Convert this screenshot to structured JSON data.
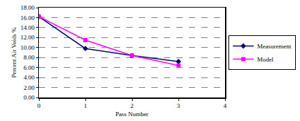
{
  "chart_data": {
    "type": "line",
    "x_label": "Pass Number",
    "y_label": "Percent Air Voids %",
    "x": [
      0,
      1,
      2,
      3
    ],
    "series": [
      {
        "name": "Measurement",
        "color": "#000080",
        "marker": "diamond",
        "values": [
          16.2,
          9.8,
          8.4,
          7.2
        ]
      },
      {
        "name": "Model",
        "color": "#ff00ff",
        "marker": "square",
        "values": [
          16.2,
          11.5,
          8.4,
          6.4
        ]
      }
    ],
    "xlim": [
      0,
      4
    ],
    "xticks": [
      0,
      1,
      2,
      3,
      4
    ],
    "ylim": [
      0,
      18
    ],
    "yticks": [
      {
        "value": 0,
        "label": "0.00"
      },
      {
        "value": 2,
        "label": "2.00"
      },
      {
        "value": 4,
        "label": "4.00"
      },
      {
        "value": 6,
        "label": "6.00"
      },
      {
        "value": 8,
        "label": "8.00"
      },
      {
        "value": 10,
        "label": "10.00"
      },
      {
        "value": 12,
        "label": "12.00"
      },
      {
        "value": 14,
        "label": "14.00"
      },
      {
        "value": 16,
        "label": "16.00"
      },
      {
        "value": 18,
        "label": "18.00"
      }
    ],
    "grid": true,
    "legend": "right"
  }
}
